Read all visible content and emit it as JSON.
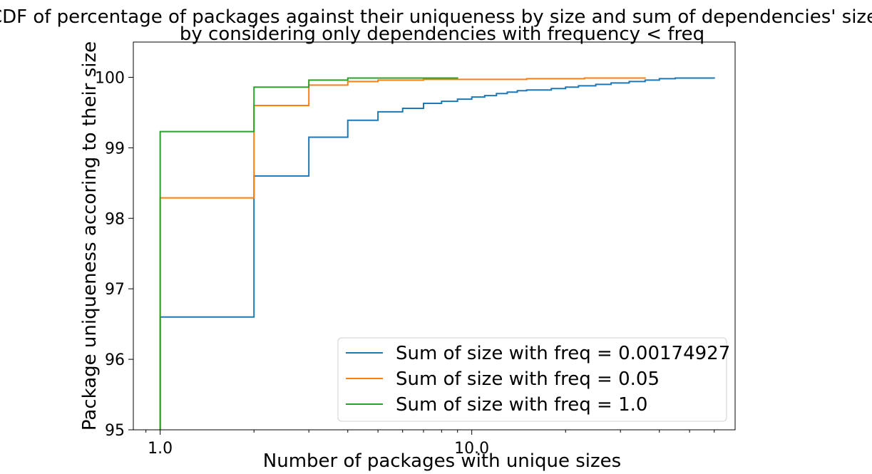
{
  "chart_data": {
    "type": "line",
    "title_lines": [
      "CDF of percentage of packages against their uniqueness by size and sum of dependencies' size",
      "by considering only dependencies with frequency < freq"
    ],
    "xlabel": "Number of packages with unique sizes",
    "ylabel": "Package uniqueness accoring to their size",
    "x_scale": "log",
    "xlim": [
      0.82,
      70
    ],
    "ylim": [
      95,
      100.5
    ],
    "x_ticks": [
      {
        "value": 1,
        "label": "1.0"
      },
      {
        "value": 10,
        "label": "10.0"
      }
    ],
    "y_ticks": [
      {
        "value": 95,
        "label": "95"
      },
      {
        "value": 96,
        "label": "96"
      },
      {
        "value": 97,
        "label": "97"
      },
      {
        "value": 98,
        "label": "98"
      },
      {
        "value": 99,
        "label": "99"
      },
      {
        "value": 100,
        "label": "100"
      }
    ],
    "grid": false,
    "legend_position": "lower-right",
    "series": [
      {
        "name": "Sum of size with freq = 0.00174927",
        "color": "#1f77b4",
        "x": [
          1,
          2,
          3,
          4,
          5,
          6,
          7,
          8,
          9,
          10,
          11,
          12,
          13,
          14,
          15,
          18,
          20,
          22,
          25,
          28,
          32,
          36,
          40,
          45,
          60
        ],
        "y": [
          96.6,
          98.6,
          99.15,
          99.39,
          99.51,
          99.56,
          99.63,
          99.66,
          99.69,
          99.72,
          99.74,
          99.77,
          99.79,
          99.81,
          99.82,
          99.84,
          99.86,
          99.88,
          99.9,
          99.92,
          99.94,
          99.96,
          99.98,
          99.99,
          100.0
        ]
      },
      {
        "name": "Sum of size with freq = 0.05",
        "color": "#ff7f0e",
        "x": [
          1,
          2,
          3,
          4,
          5,
          7,
          15,
          23,
          36
        ],
        "y": [
          98.29,
          99.6,
          99.89,
          99.94,
          99.96,
          99.97,
          99.98,
          99.99,
          100.0
        ]
      },
      {
        "name": "Sum of size with freq = 1.0",
        "color": "#2ca02c",
        "x": [
          1,
          2,
          3,
          4,
          9
        ],
        "y": [
          99.23,
          99.86,
          99.96,
          99.99,
          100.0
        ]
      }
    ]
  }
}
